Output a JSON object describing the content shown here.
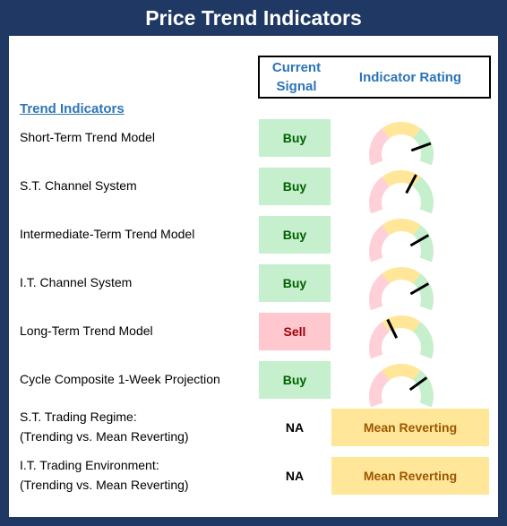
{
  "title": "Price Trend Indicators",
  "header": {
    "current_signal": "Current Signal",
    "indicator_rating": "Indicator Rating"
  },
  "section_title": "Trend Indicators",
  "trend_rows": [
    {
      "label": "Short-Term Trend Model",
      "signal": "Buy"
    },
    {
      "label": "S.T. Channel System",
      "signal": "Buy"
    },
    {
      "label": "Intermediate-Term Trend Model",
      "signal": "Buy"
    },
    {
      "label": "I.T. Channel System",
      "signal": "Buy"
    },
    {
      "label": "Long-Term Trend Model",
      "signal": "Sell"
    },
    {
      "label": "Cycle Composite 1-Week Projection",
      "signal": "Buy"
    }
  ],
  "regime_rows": [
    {
      "label": [
        "S.T. Trading Regime:",
        "(Trending vs. Mean Reverting)"
      ],
      "signal": "NA",
      "rating": "Mean Reverting"
    },
    {
      "label": [
        "I.T. Trading Environment:",
        "(Trending vs. Mean Reverting)"
      ],
      "signal": "NA",
      "rating": "Mean Reverting"
    }
  ]
}
